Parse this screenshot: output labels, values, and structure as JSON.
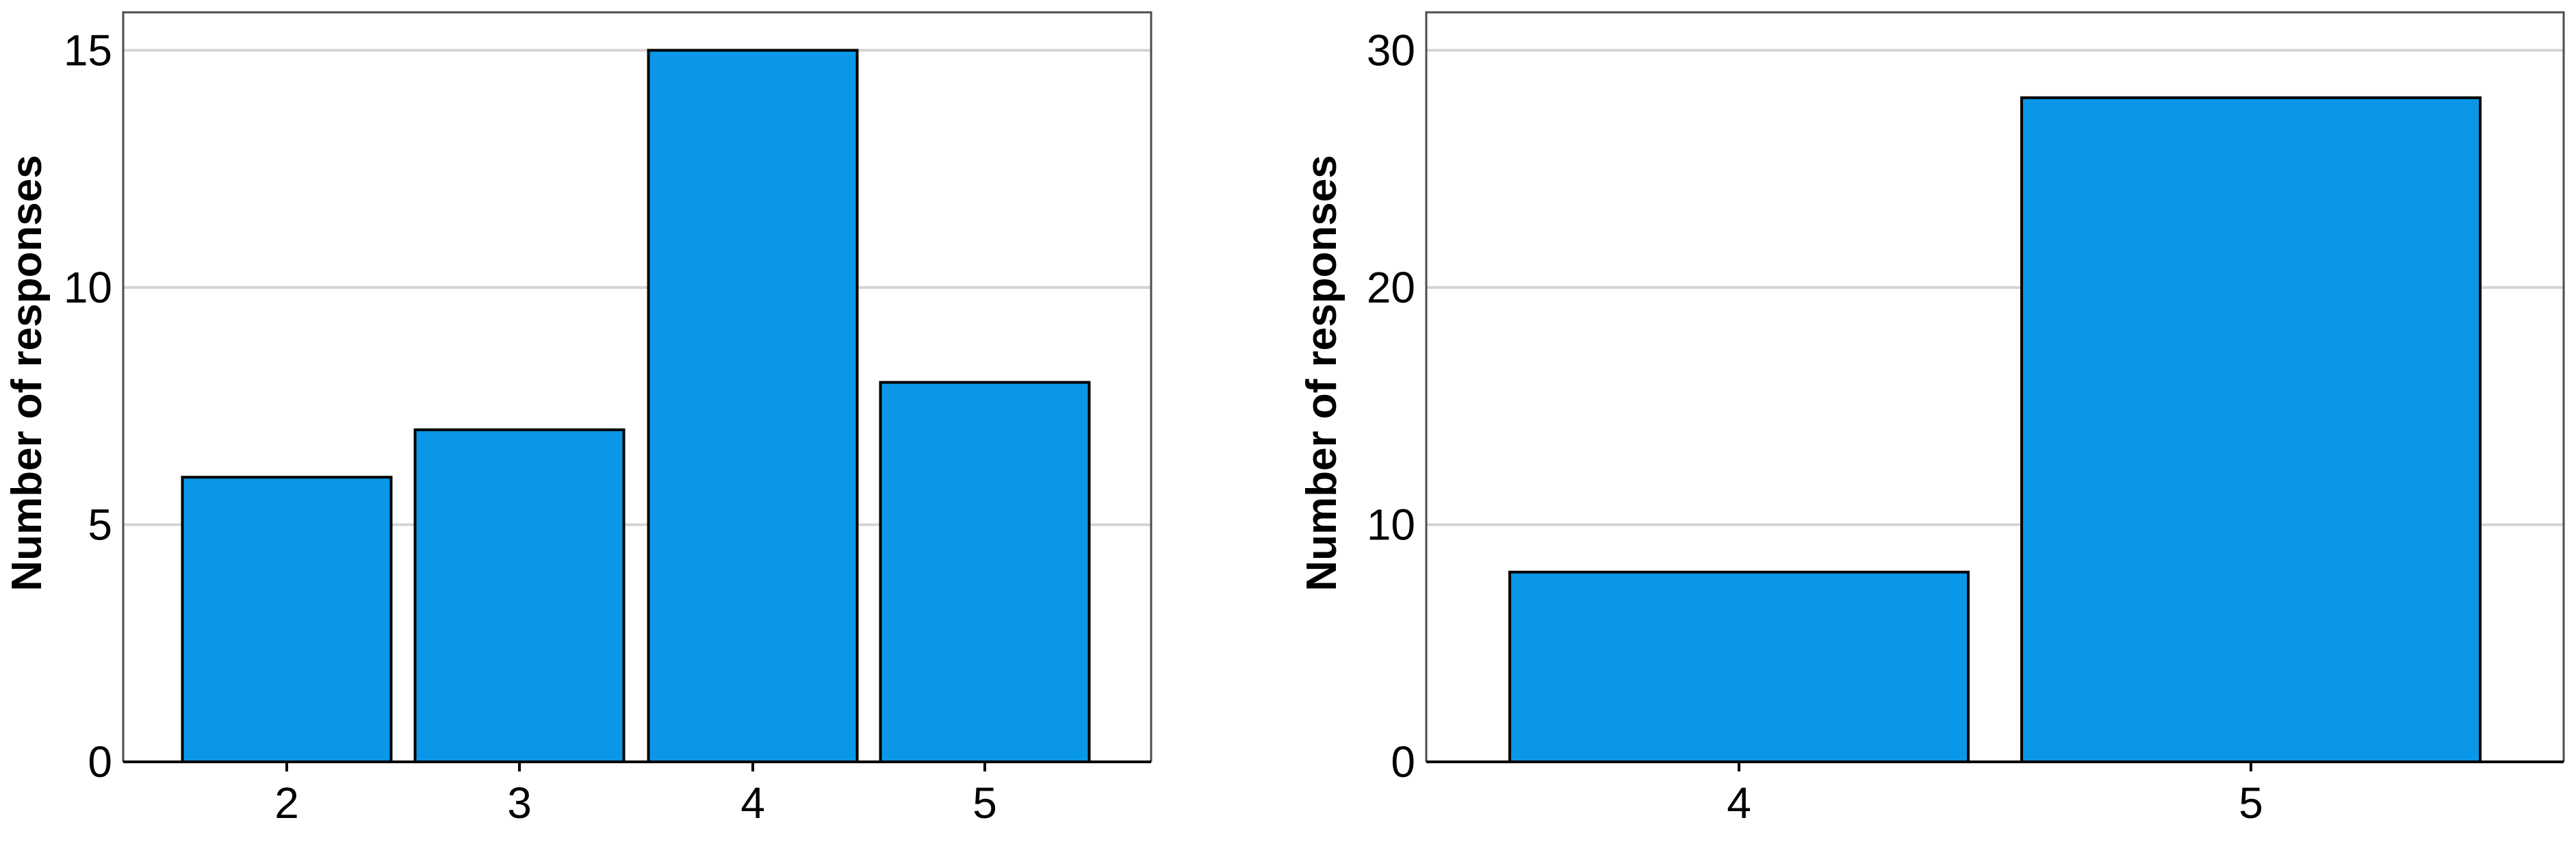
{
  "colors": {
    "bar_fill": "#0A97E8",
    "bar_stroke": "#000000",
    "gridline": "#D4D4D4",
    "frame": "#4D4D4D",
    "axis": "#000000"
  },
  "chart_data": [
    {
      "type": "bar",
      "categories": [
        "2",
        "3",
        "4",
        "5"
      ],
      "values": [
        6,
        7,
        15,
        8
      ],
      "title": "",
      "xlabel": "",
      "ylabel": "Number of responses",
      "ylim": [
        0,
        15.8
      ],
      "yticks": [
        0,
        5,
        10,
        15
      ],
      "grid": true
    },
    {
      "type": "bar",
      "categories": [
        "4",
        "5"
      ],
      "values": [
        8,
        28
      ],
      "title": "",
      "xlabel": "",
      "ylabel": "Number of responses",
      "ylim": [
        0,
        31.6
      ],
      "yticks": [
        0,
        10,
        20,
        30
      ],
      "grid": true
    }
  ]
}
